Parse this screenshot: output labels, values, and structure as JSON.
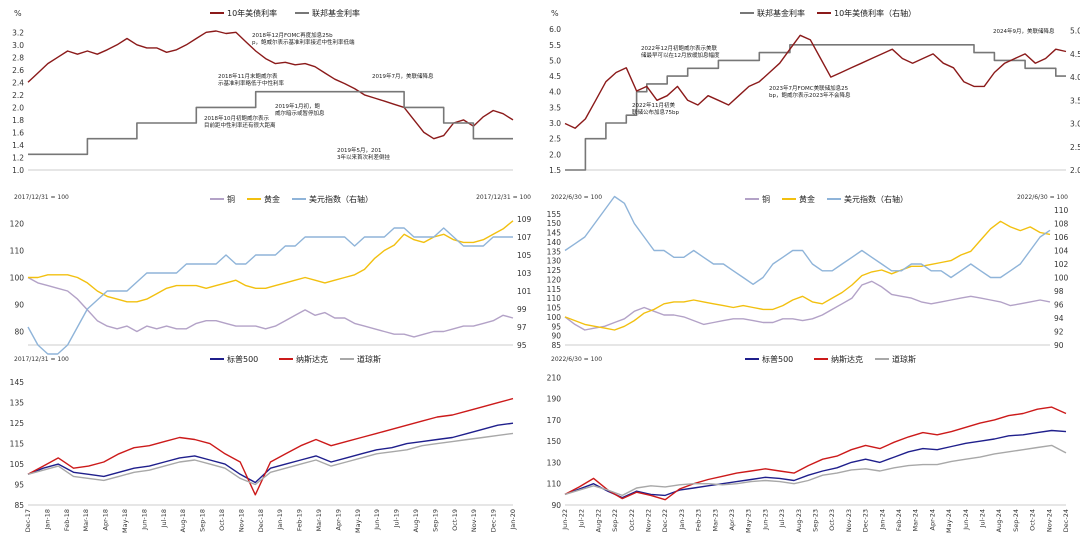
{
  "chart_data": [
    {
      "id": "c1",
      "type": "line",
      "unit_label": "%",
      "legend": [
        "10年美债利率",
        "联邦基金利率"
      ],
      "series": [
        {
          "name": "10年美债利率",
          "color": "#8b1a1a",
          "values": [
            2.4,
            2.55,
            2.7,
            2.8,
            2.9,
            2.85,
            2.9,
            2.85,
            2.92,
            3.0,
            3.1,
            3.0,
            2.95,
            2.95,
            2.88,
            2.92,
            3.0,
            3.1,
            3.2,
            3.22,
            3.18,
            3.2,
            3.05,
            2.9,
            2.78,
            2.7,
            2.72,
            2.68,
            2.7,
            2.65,
            2.55,
            2.45,
            2.38,
            2.3,
            2.2,
            2.15,
            2.1,
            2.05,
            2.0,
            1.8,
            1.6,
            1.5,
            1.55,
            1.75,
            1.8,
            1.7,
            1.85,
            1.95,
            1.9,
            1.8
          ]
        },
        {
          "name": "联邦基金利率",
          "color": "#777777",
          "values": [
            1.25,
            1.25,
            1.25,
            1.25,
            1.25,
            1.25,
            1.5,
            1.5,
            1.5,
            1.5,
            1.5,
            1.75,
            1.75,
            1.75,
            1.75,
            1.75,
            1.75,
            2.0,
            2.0,
            2.0,
            2.0,
            2.0,
            2.0,
            2.25,
            2.25,
            2.25,
            2.25,
            2.25,
            2.25,
            2.25,
            2.25,
            2.25,
            2.25,
            2.25,
            2.25,
            2.25,
            2.25,
            2.25,
            2.0,
            2.0,
            2.0,
            2.0,
            1.75,
            1.75,
            1.75,
            1.5,
            1.5,
            1.5,
            1.5,
            1.5
          ]
        }
      ],
      "ylim": [
        1.0,
        3.3
      ],
      "yticks": [
        "1.0",
        "1.2",
        "1.4",
        "1.6",
        "1.8",
        "2.0",
        "2.2",
        "2.4",
        "2.6",
        "2.8",
        "3.0",
        "3.2"
      ],
      "annotations": [
        "2018年12月FOMC再度加息25bp，鲍威尔表示基准利率接近中性利率低端",
        "2018年11月末鲍威尔表示基准利率略低于中性利率",
        "2018年10月初鲍威尔表示目前距中性利率还有很大距离",
        "2019年1月初，鲍威尔暗示或暂停加息",
        "2019年5月，2013年以来首次利差倒挂",
        "2019年7月，美联储降息"
      ]
    },
    {
      "id": "c2",
      "type": "line",
      "unit_label": "%",
      "legend": [
        "联邦基金利率",
        "10年美债利率（右轴）"
      ],
      "series": [
        {
          "name": "联邦基金利率",
          "color": "#777777",
          "axis": "left",
          "values": [
            1.5,
            1.5,
            2.5,
            2.5,
            3.0,
            3.0,
            3.25,
            4.0,
            4.25,
            4.25,
            4.5,
            4.5,
            4.75,
            4.75,
            4.75,
            5.0,
            5.0,
            5.0,
            5.0,
            5.25,
            5.25,
            5.25,
            5.5,
            5.5,
            5.5,
            5.5,
            5.5,
            5.5,
            5.5,
            5.5,
            5.5,
            5.5,
            5.5,
            5.5,
            5.5,
            5.5,
            5.5,
            5.5,
            5.5,
            5.5,
            5.25,
            5.25,
            5.0,
            5.0,
            5.0,
            4.75,
            4.75,
            4.75,
            4.5,
            4.5
          ]
        },
        {
          "name": "10年美债利率（右轴）",
          "color": "#8b1a1a",
          "axis": "right",
          "values": [
            3.0,
            2.9,
            3.1,
            3.5,
            3.9,
            4.1,
            4.2,
            3.7,
            3.8,
            3.5,
            3.6,
            3.8,
            3.5,
            3.4,
            3.6,
            3.5,
            3.4,
            3.6,
            3.8,
            3.9,
            4.1,
            4.3,
            4.6,
            4.9,
            4.8,
            4.4,
            4.0,
            4.1,
            4.2,
            4.3,
            4.4,
            4.5,
            4.6,
            4.4,
            4.3,
            4.4,
            4.5,
            4.3,
            4.2,
            3.9,
            3.8,
            3.8,
            4.1,
            4.3,
            4.4,
            4.5,
            4.3,
            4.4,
            4.6,
            4.55
          ]
        }
      ],
      "ylim": [
        1.5,
        6.1
      ],
      "yticks": [
        "1.5",
        "2.0",
        "2.5",
        "3.0",
        "3.5",
        "4.0",
        "4.5",
        "5.0",
        "5.5",
        "6.0"
      ],
      "ylim_right": [
        2.0,
        5.1
      ],
      "yticks_right": [
        "2.0",
        "2.5",
        "3.0",
        "3.5",
        "4.0",
        "4.5",
        "5.0"
      ],
      "annotations": [
        "2022年12月初鲍威尔表示美联储最早可以在12月放缓加息幅度",
        "2022年11月初美联储公布加息75bp",
        "2023年7月FOMC美联储加息25bp，鲍威尔表示2023年不会降息",
        "2024年9月，美联储降息"
      ]
    },
    {
      "id": "c3",
      "type": "line",
      "base_label": "2017/12/31 = 100",
      "base_label_right": "2017/12/31 = 100",
      "legend": [
        "铜",
        "黄金",
        "美元指数（右轴）"
      ],
      "series": [
        {
          "name": "铜",
          "color": "#b3a2c7",
          "axis": "left",
          "values": [
            100,
            98,
            97,
            96,
            95,
            92,
            88,
            84,
            82,
            81,
            82,
            80,
            82,
            81,
            82,
            81,
            81,
            83,
            84,
            84,
            83,
            82,
            82,
            82,
            81,
            82,
            84,
            86,
            88,
            86,
            87,
            85,
            85,
            83,
            82,
            81,
            80,
            79,
            79,
            78,
            79,
            80,
            80,
            81,
            82,
            82,
            83,
            84,
            86,
            85
          ]
        },
        {
          "name": "黄金",
          "color": "#f2c010",
          "axis": "left",
          "values": [
            100,
            100,
            101,
            101,
            101,
            100,
            98,
            95,
            93,
            92,
            91,
            91,
            92,
            94,
            96,
            97,
            97,
            97,
            96,
            97,
            98,
            99,
            97,
            96,
            96,
            97,
            98,
            99,
            100,
            99,
            98,
            99,
            100,
            101,
            103,
            107,
            110,
            112,
            116,
            114,
            113,
            115,
            116,
            114,
            113,
            113,
            114,
            116,
            118,
            121
          ]
        },
        {
          "name": "美元指数（右轴）",
          "color": "#8fb4d9",
          "axis": "right",
          "values": [
            97,
            95,
            94,
            94,
            95,
            97,
            99,
            100,
            101,
            101,
            101,
            102,
            103,
            103,
            103,
            103,
            104,
            104,
            104,
            104,
            105,
            104,
            104,
            105,
            105,
            105,
            106,
            106,
            107,
            107,
            107,
            107,
            107,
            106,
            107,
            107,
            107,
            108,
            108,
            107,
            107,
            107,
            108,
            107,
            106,
            106,
            106,
            107,
            107,
            107
          ]
        }
      ],
      "ylim": [
        75,
        125
      ],
      "yticks": [
        "80",
        "90",
        "100",
        "110",
        "120"
      ],
      "ylim_right": [
        95,
        110
      ],
      "yticks_right": [
        "95",
        "97",
        "99",
        "101",
        "103",
        "105",
        "107",
        "109"
      ]
    },
    {
      "id": "c4",
      "type": "line",
      "base_label": "2022/6/30 = 100",
      "base_label_right": "2022/6/30 = 100",
      "legend": [
        "铜",
        "黄金",
        "美元指数（右轴）"
      ],
      "series": [
        {
          "name": "铜",
          "color": "#b3a2c7",
          "axis": "left",
          "values": [
            100,
            96,
            93,
            94,
            95,
            97,
            99,
            103,
            105,
            103,
            101,
            101,
            100,
            98,
            96,
            97,
            98,
            99,
            99,
            98,
            97,
            97,
            99,
            99,
            98,
            99,
            101,
            104,
            107,
            110,
            117,
            119,
            116,
            112,
            111,
            110,
            108,
            107,
            108,
            109,
            110,
            111,
            110,
            109,
            108,
            106,
            107,
            108,
            109,
            108
          ]
        },
        {
          "name": "黄金",
          "color": "#f2c010",
          "axis": "left",
          "values": [
            100,
            98,
            96,
            95,
            94,
            93,
            95,
            98,
            102,
            104,
            107,
            108,
            108,
            109,
            108,
            107,
            106,
            105,
            106,
            105,
            104,
            104,
            106,
            109,
            111,
            108,
            107,
            110,
            113,
            117,
            122,
            124,
            125,
            123,
            125,
            127,
            127,
            128,
            129,
            130,
            133,
            135,
            141,
            147,
            151,
            148,
            146,
            148,
            145,
            144
          ]
        },
        {
          "name": "美元指数（右轴）",
          "color": "#8fb4d9",
          "axis": "right",
          "values": [
            104,
            105,
            106,
            108,
            110,
            112,
            111,
            108,
            106,
            104,
            104,
            103,
            103,
            104,
            103,
            102,
            102,
            101,
            100,
            99,
            100,
            102,
            103,
            104,
            104,
            102,
            101,
            101,
            102,
            103,
            104,
            103,
            102,
            101,
            101,
            102,
            102,
            101,
            101,
            100,
            101,
            102,
            101,
            100,
            100,
            101,
            102,
            104,
            106,
            107
          ]
        }
      ],
      "ylim": [
        85,
        157
      ],
      "yticks": [
        "85",
        "90",
        "95",
        "100",
        "105",
        "110",
        "115",
        "120",
        "125",
        "130",
        "135",
        "140",
        "145",
        "150",
        "155"
      ],
      "ylim_right": [
        90,
        110
      ],
      "yticks_right": [
        "90",
        "92",
        "94",
        "96",
        "98",
        "100",
        "102",
        "104",
        "106",
        "108",
        "110"
      ]
    },
    {
      "id": "c5",
      "type": "line",
      "base_label": "2017/12/31 = 100",
      "legend": [
        "标普500",
        "纳斯达克",
        "道琼斯"
      ],
      "x_labels": [
        "Dec-17",
        "Jan-18",
        "Feb-18",
        "Mar-18",
        "Apr-18",
        "May-18",
        "Jun-18",
        "Jul-18",
        "Aug-18",
        "Sep-18",
        "Oct-18",
        "Nov-18",
        "Dec-18",
        "Jan-19",
        "Feb-19",
        "Mar-19",
        "Apr-19",
        "May-19",
        "Jun-19",
        "Jul-19",
        "Aug-19",
        "Sep-19",
        "Oct-19",
        "Nov-19",
        "Dec-19",
        "Jan-20"
      ],
      "series": [
        {
          "name": "标普500",
          "color": "#1f1f8c",
          "values": [
            100,
            103,
            105,
            101,
            100,
            99,
            101,
            103,
            104,
            106,
            108,
            109,
            107,
            105,
            100,
            96,
            103,
            105,
            107,
            109,
            106,
            108,
            110,
            112,
            113,
            115,
            116,
            117,
            118,
            120,
            122,
            124,
            125
          ]
        },
        {
          "name": "纳斯达克",
          "color": "#cc1a1a",
          "values": [
            100,
            104,
            108,
            103,
            104,
            106,
            110,
            113,
            114,
            116,
            118,
            117,
            115,
            110,
            106,
            90,
            106,
            110,
            114,
            117,
            114,
            116,
            118,
            120,
            122,
            124,
            126,
            128,
            129,
            131,
            133,
            135,
            137
          ]
        },
        {
          "name": "道琼斯",
          "color": "#a8a8a8",
          "values": [
            100,
            102,
            104,
            99,
            98,
            97,
            99,
            101,
            102,
            104,
            106,
            107,
            105,
            103,
            98,
            95,
            101,
            103,
            105,
            107,
            104,
            106,
            108,
            110,
            111,
            112,
            114,
            115,
            116,
            117,
            118,
            119,
            120
          ]
        }
      ],
      "ylim": [
        85,
        150
      ],
      "yticks": [
        "85",
        "95",
        "105",
        "115",
        "125",
        "135",
        "145"
      ]
    },
    {
      "id": "c6",
      "type": "line",
      "base_label": "2022/6/30 = 100",
      "legend": [
        "标普500",
        "纳斯达克",
        "道琼斯"
      ],
      "x_labels": [
        "Jun-22",
        "Jul-22",
        "Aug-22",
        "Sep-22",
        "Oct-22",
        "Nov-22",
        "Dec-22",
        "Jan-23",
        "Feb-23",
        "Mar-23",
        "Apr-23",
        "May-23",
        "Jun-23",
        "Jul-23",
        "Aug-23",
        "Sep-23",
        "Oct-23",
        "Nov-23",
        "Dec-23",
        "Jan-24",
        "Feb-24",
        "Mar-24",
        "Apr-24",
        "May-24",
        "Jun-24",
        "Jul-24",
        "Aug-24",
        "Sep-24",
        "Oct-24",
        "Nov-24",
        "Dec-24"
      ],
      "series": [
        {
          "name": "标普500",
          "color": "#1f1f8c",
          "values": [
            100,
            105,
            110,
            103,
            97,
            103,
            100,
            99,
            104,
            106,
            108,
            110,
            112,
            114,
            116,
            115,
            113,
            118,
            122,
            125,
            130,
            133,
            130,
            135,
            140,
            143,
            142,
            145,
            148,
            150,
            152,
            155,
            156,
            158,
            160,
            159
          ]
        },
        {
          "name": "纳斯达克",
          "color": "#cc1a1a",
          "values": [
            100,
            107,
            115,
            104,
            96,
            102,
            99,
            95,
            105,
            110,
            114,
            117,
            120,
            122,
            124,
            122,
            120,
            127,
            133,
            136,
            142,
            146,
            143,
            149,
            154,
            158,
            156,
            159,
            163,
            167,
            170,
            174,
            176,
            180,
            182,
            176
          ]
        },
        {
          "name": "道琼斯",
          "color": "#a8a8a8",
          "values": [
            100,
            104,
            108,
            104,
            99,
            106,
            108,
            107,
            109,
            110,
            110,
            109,
            110,
            112,
            113,
            112,
            110,
            113,
            118,
            120,
            123,
            124,
            122,
            125,
            127,
            128,
            128,
            131,
            133,
            135,
            138,
            140,
            142,
            144,
            146,
            139
          ]
        }
      ],
      "ylim": [
        90,
        215
      ],
      "yticks": [
        "90",
        "110",
        "130",
        "150",
        "170",
        "190",
        "210"
      ]
    }
  ]
}
